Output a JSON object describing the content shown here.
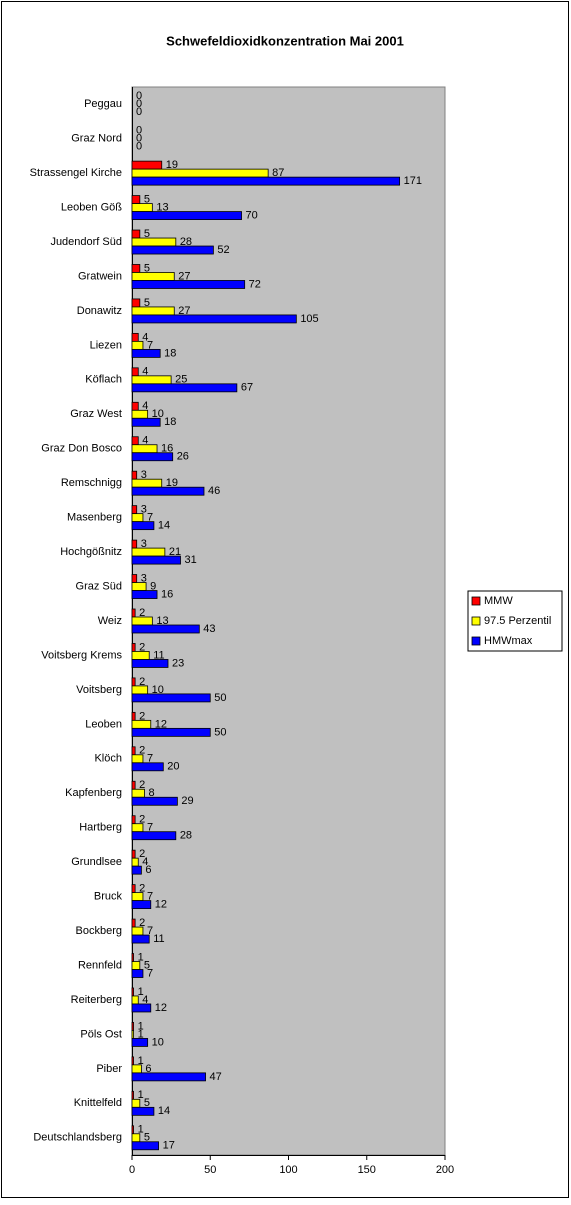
{
  "chart_data": {
    "type": "hbar",
    "title": "Schwefeldioxidkonzentration Mai 2001",
    "categories": [
      "Peggau",
      "Graz Nord",
      "Strassengel Kirche",
      "Leoben Göß",
      "Judendorf Süd",
      "Gratwein",
      "Donawitz",
      "Liezen",
      "Köflach",
      "Graz West",
      "Graz Don Bosco",
      "Remschnigg",
      "Masenberg",
      "Hochgößnitz",
      "Graz Süd",
      "Weiz",
      "Voitsberg Krems",
      "Voitsberg",
      "Leoben",
      "Klöch",
      "Kapfenberg",
      "Hartberg",
      "Grundlsee",
      "Bruck",
      "Bockberg",
      "Rennfeld",
      "Reiterberg",
      "Pöls Ost",
      "Piber",
      "Knittelfeld",
      "Deutschlandsberg"
    ],
    "series": [
      {
        "name": "MMW",
        "color": "#ff0000",
        "values": [
          0,
          0,
          19,
          5,
          5,
          5,
          5,
          4,
          4,
          4,
          4,
          3,
          3,
          3,
          3,
          2,
          2,
          2,
          2,
          2,
          2,
          2,
          2,
          2,
          2,
          1,
          1,
          1,
          1,
          1,
          1
        ]
      },
      {
        "name": "97.5 Perzentil",
        "color": "#ffff00",
        "values": [
          0,
          0,
          87,
          13,
          28,
          27,
          27,
          7,
          25,
          10,
          16,
          19,
          7,
          21,
          9,
          13,
          11,
          10,
          12,
          7,
          8,
          7,
          4,
          7,
          7,
          5,
          4,
          1,
          6,
          5,
          5
        ]
      },
      {
        "name": "HMWmax",
        "color": "#0000ff",
        "values": [
          0,
          0,
          171,
          70,
          52,
          72,
          105,
          18,
          67,
          18,
          26,
          46,
          14,
          31,
          16,
          43,
          23,
          50,
          50,
          20,
          29,
          28,
          6,
          12,
          11,
          7,
          12,
          10,
          47,
          14,
          17
        ]
      }
    ],
    "xlim": [
      0,
      200
    ],
    "xticks": [
      0,
      50,
      100,
      150,
      200
    ],
    "legend": "right",
    "background": "#c0c0c0"
  }
}
